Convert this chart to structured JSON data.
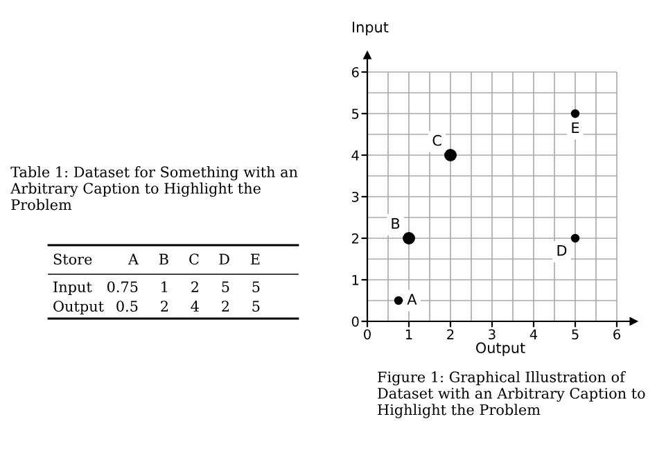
{
  "chart_data": [
    {
      "type": "other",
      "title": "Table 1: Dataset for Something with an Arbitrary Caption to Highlight the Problem",
      "annotations": [
        "Store"
      ],
      "categories": [
        "A",
        "B",
        "C",
        "D",
        "E"
      ],
      "y_categories": [
        "Input",
        "Output"
      ],
      "cell_labels": [
        [
          "0.75",
          "1",
          "2",
          "5",
          "5"
        ],
        [
          "0.5",
          "2",
          "4",
          "2",
          "5"
        ]
      ]
    },
    {
      "type": "scatter",
      "x": [
        0.75,
        1,
        2,
        5,
        5
      ],
      "values": [
        0.5,
        2,
        4,
        2,
        5
      ],
      "sizes": [
        0.4,
        1,
        1,
        0.4,
        0.4
      ],
      "color": "#000000",
      "xlabel": "Output",
      "ylabel": "Input",
      "xlim": [
        0,
        6.4
      ],
      "ylim": [
        0,
        6.4
      ],
      "xticks": [
        0,
        1,
        2,
        3,
        4,
        5,
        6
      ],
      "yticks": [
        0,
        1,
        2,
        3,
        4,
        5,
        6
      ],
      "grid": true,
      "marker": "circle",
      "annotations": [
        {
          "text": "A",
          "x": 0.75,
          "y": 0.5
        },
        {
          "text": "B",
          "x": 1,
          "y": 2
        },
        {
          "text": "C",
          "x": 2,
          "y": 4
        },
        {
          "text": "D",
          "x": 5,
          "y": 2
        },
        {
          "text": "E",
          "x": 5,
          "y": 5
        },
        "Figure 1: Graphical Illustration of Dataset with an Arbitrary Caption to Highlight the Problem"
      ]
    }
  ]
}
